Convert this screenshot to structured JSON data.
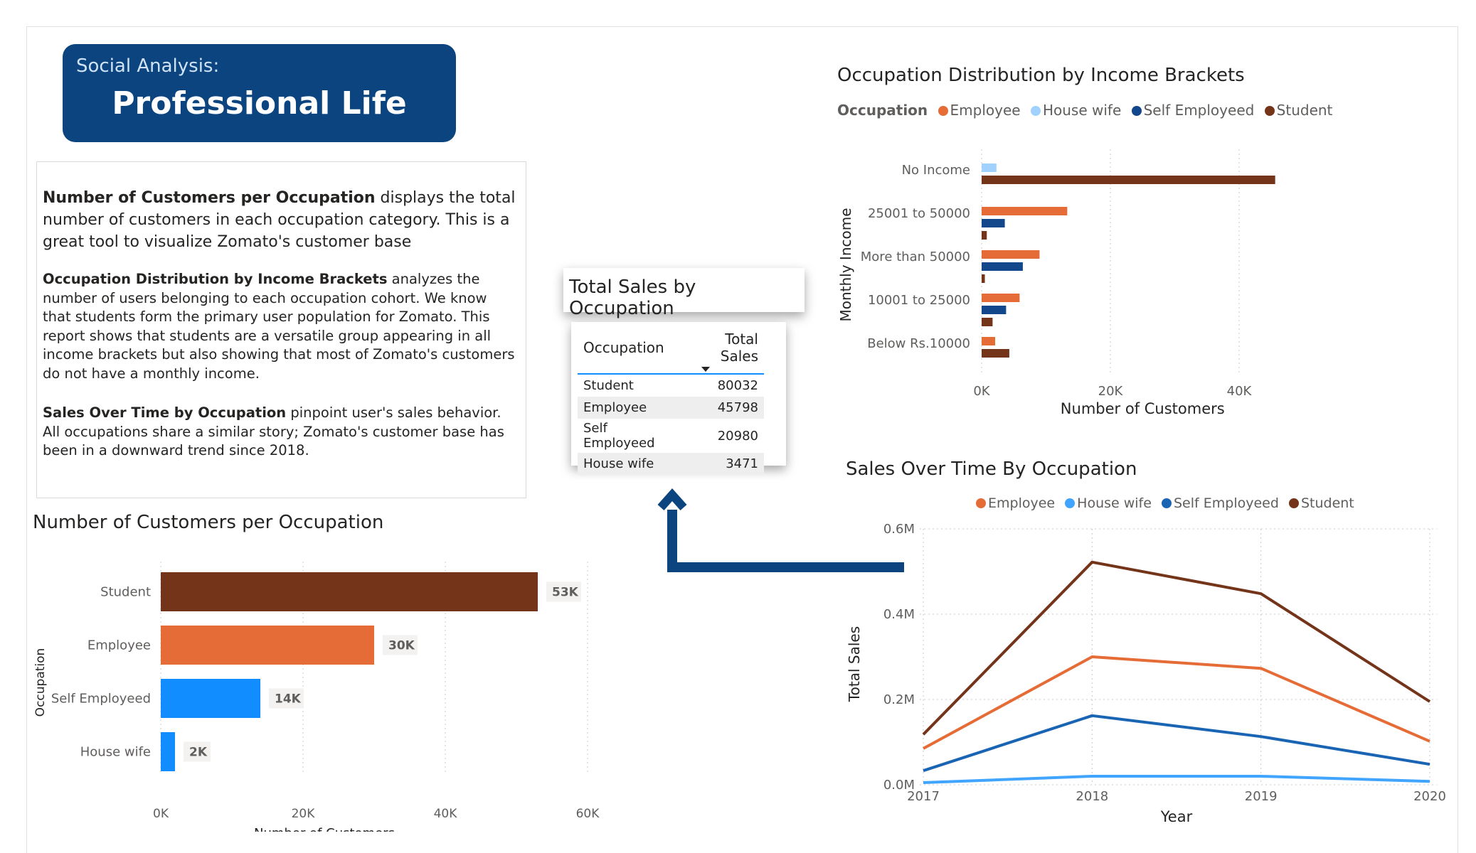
{
  "header": {
    "subtitle": "Social Analysis:",
    "title": "Professional Life"
  },
  "description": {
    "p1_bold": "Number of Customers per Occupation",
    "p1_text": " displays the total number of customers in each occupation category. This is a great tool to visualize Zomato's customer base",
    "p2_bold": "Occupation Distribution by Income Brackets",
    "p2_text": " analyzes the number of users belonging to each occupation cohort.  We know that students form the primary user population for Zomato. This report shows that students are a versatile group appearing in all income brackets but also showing that most of Zomato's customers do not have a monthly income.",
    "p3_bold": "Sales Over Time by Occupation",
    "p3_text": " pinpoint user's sales behavior. All occupations share a similar story; Zomato's customer base has been in a downward trend since 2018."
  },
  "table": {
    "title": "Total Sales by Occupation",
    "headers": [
      "Occupation",
      "Total Sales"
    ],
    "rows": [
      {
        "occupation": "Student",
        "sales": "80032"
      },
      {
        "occupation": "Employee",
        "sales": "45798"
      },
      {
        "occupation": "Self Employeed",
        "sales": "20980"
      },
      {
        "occupation": "House wife",
        "sales": "3471"
      }
    ]
  },
  "colors": {
    "student": "#74341a",
    "employee": "#e66c37",
    "self_employed_bar": "#118dff",
    "house_wife_bar": "#118dff",
    "house_wife_light": "#a0d1ff",
    "self_employed_dark": "#12478c",
    "self_employed_line": "#1a64b4",
    "house_wife_line": "#41a4ff",
    "arrow": "#0b447f",
    "header_bg": "#0b447f"
  },
  "chart_data": [
    {
      "id": "customers_per_occupation",
      "type": "bar",
      "title": "Number of Customers per Occupation",
      "xlabel": "Number of Customers",
      "ylabel": "Occupation",
      "categories": [
        "Student",
        "Employee",
        "Self Employeed",
        "House wife"
      ],
      "values": [
        53000,
        30000,
        14000,
        2000
      ],
      "data_labels": [
        "53K",
        "30K",
        "14K",
        "2K"
      ],
      "xlim": [
        0,
        60000
      ],
      "xticks": [
        "0K",
        "20K",
        "40K",
        "60K"
      ],
      "grid": true
    },
    {
      "id": "income_brackets",
      "type": "bar",
      "title": "Occupation Distribution by Income Brackets",
      "legend_title": "Occupation",
      "xlabel": "Number of Customers",
      "ylabel": "Monthly Income",
      "categories": [
        "No Income",
        "25001 to 50000",
        "More than 50000",
        "10001 to 25000",
        "Below Rs.10000"
      ],
      "series": [
        {
          "name": "Employee",
          "values": [
            0,
            13300,
            9000,
            5900,
            2100
          ]
        },
        {
          "name": "House wife",
          "values": [
            2300,
            0,
            0,
            0,
            0
          ]
        },
        {
          "name": "Self Employeed",
          "values": [
            0,
            3600,
            6400,
            3800,
            0
          ]
        },
        {
          "name": "Student",
          "values": [
            45600,
            800,
            500,
            1700,
            4300
          ]
        }
      ],
      "xlim": [
        0,
        50000
      ],
      "xticks": [
        "0K",
        "20K",
        "40K"
      ],
      "legend": "top-left",
      "grid": true
    },
    {
      "id": "sales_over_time",
      "type": "line",
      "title": "Sales Over Time By Occupation",
      "xlabel": "Year",
      "ylabel": "Total Sales",
      "x": [
        "2017",
        "2018",
        "2019",
        "2020"
      ],
      "series": [
        {
          "name": "Employee",
          "values": [
            85000,
            300000,
            273000,
            102000
          ]
        },
        {
          "name": "House wife",
          "values": [
            5000,
            20000,
            20000,
            8000
          ]
        },
        {
          "name": "Self Employeed",
          "values": [
            33000,
            162000,
            113000,
            48000
          ]
        },
        {
          "name": "Student",
          "values": [
            118000,
            522000,
            448000,
            195000
          ]
        }
      ],
      "ylim": [
        0,
        600000
      ],
      "yticks": [
        "0.0M",
        "0.2M",
        "0.4M",
        "0.6M"
      ],
      "legend": "top-center",
      "grid": true
    }
  ]
}
